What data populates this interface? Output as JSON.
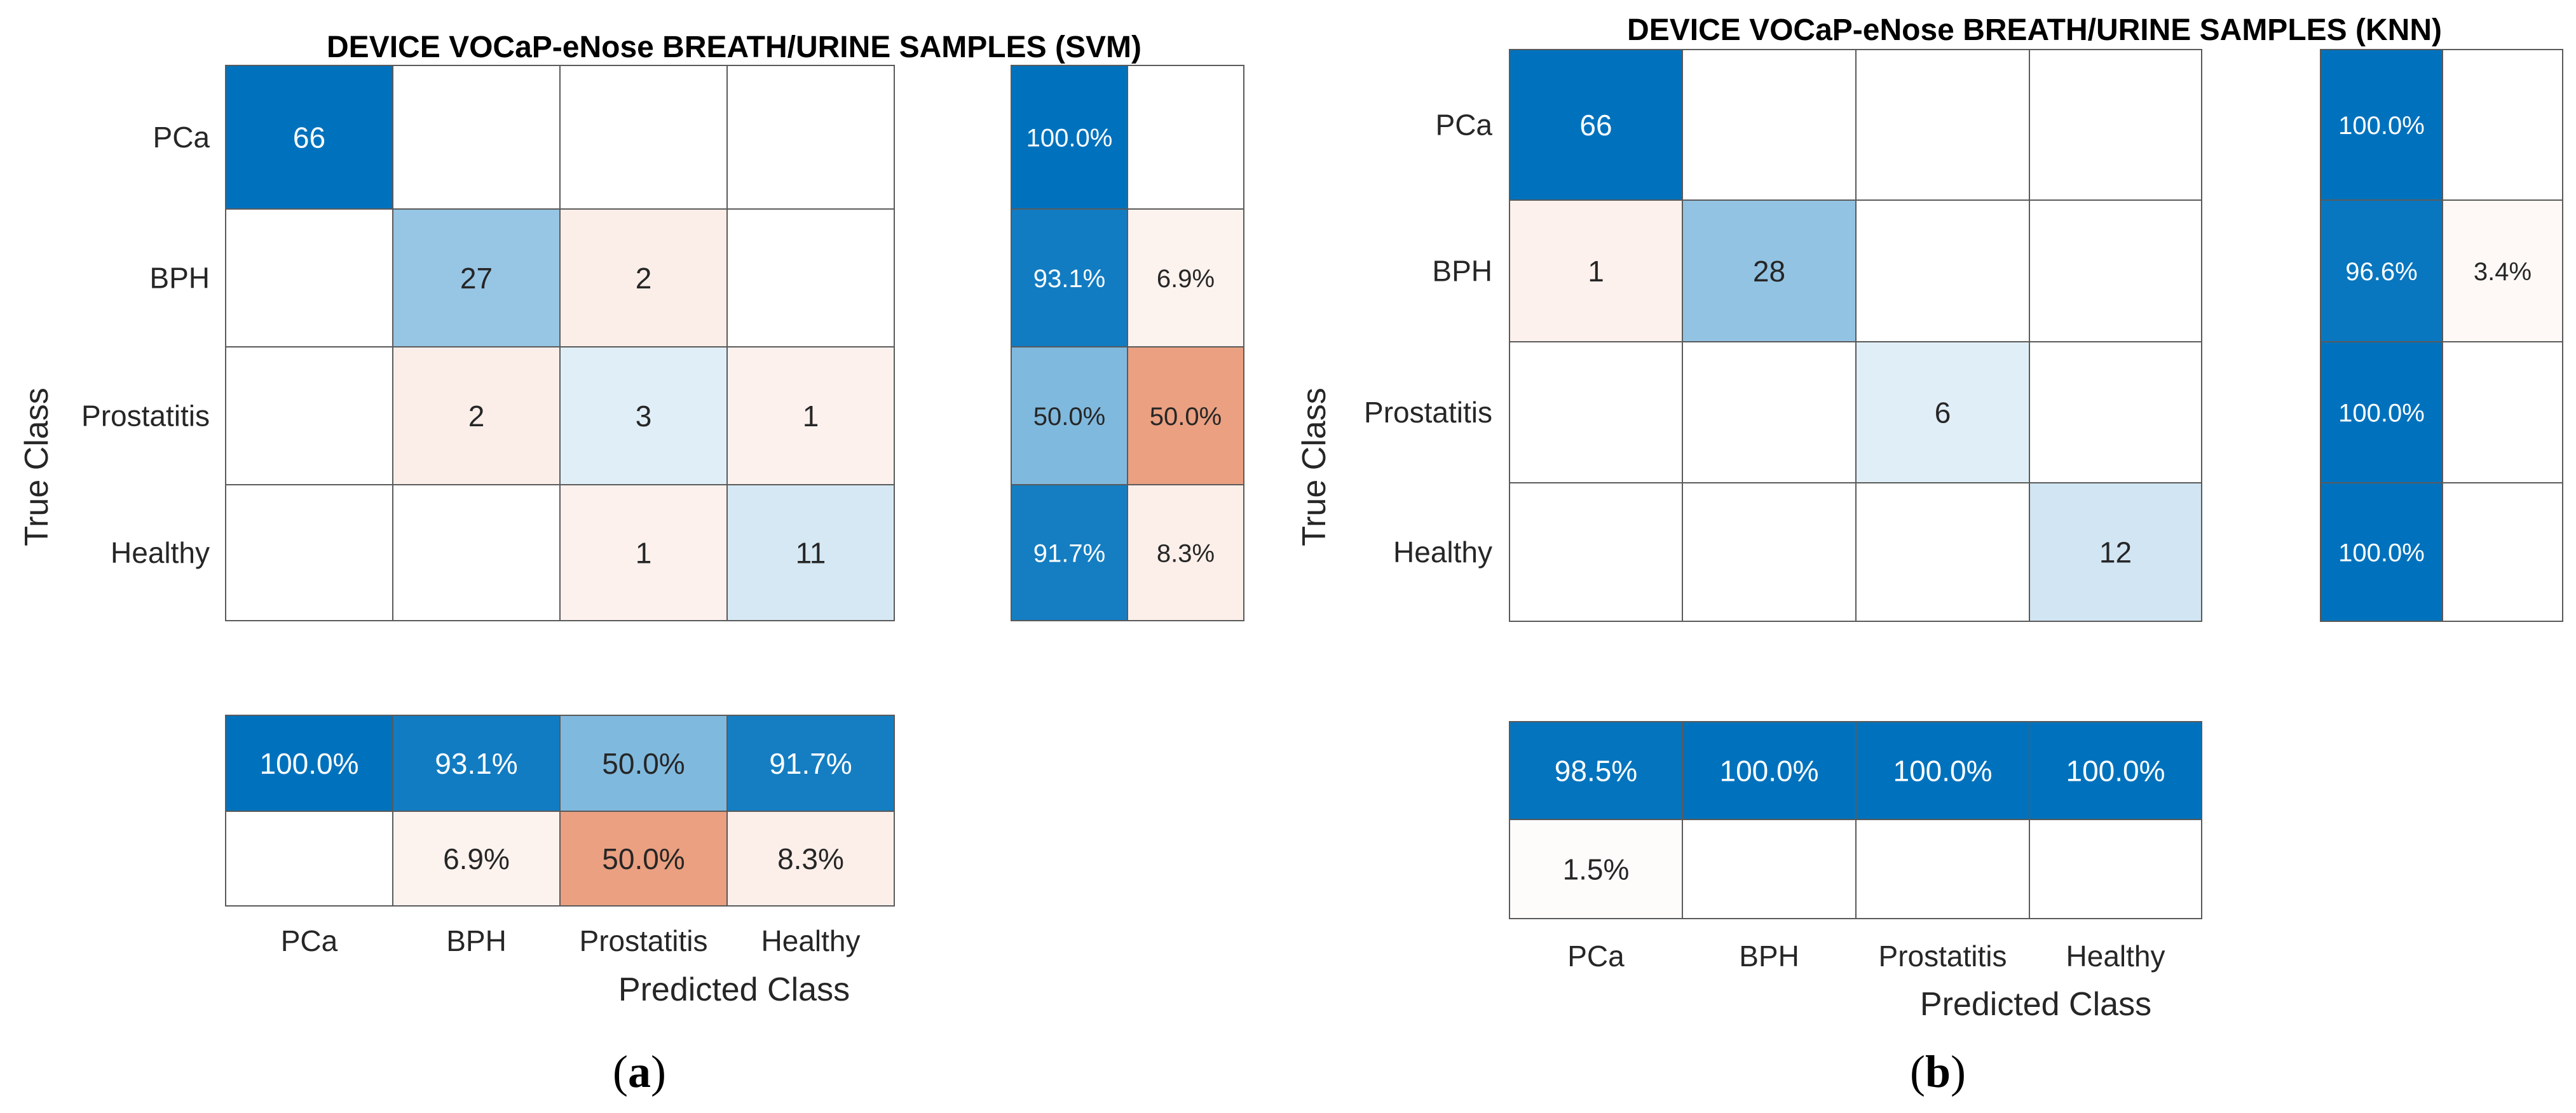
{
  "chart_data": [
    {
      "type": "heatmap",
      "subtype": "confusion-matrix",
      "title": "DEVICE VOCaP-eNose BREATH/URINE SAMPLES (SVM)",
      "caption_letter": "a",
      "classes": [
        "PCa",
        "BPH",
        "Prostatitis",
        "Healthy"
      ],
      "xlabel": "Predicted Class",
      "ylabel": "True Class",
      "matrix": [
        [
          66,
          0,
          0,
          0
        ],
        [
          0,
          27,
          2,
          0
        ],
        [
          0,
          2,
          3,
          1
        ],
        [
          0,
          0,
          1,
          11
        ]
      ],
      "row_summary": [
        [
          "100.0%",
          ""
        ],
        [
          "93.1%",
          "6.9%"
        ],
        [
          "50.0%",
          "50.0%"
        ],
        [
          "91.7%",
          "8.3%"
        ]
      ],
      "col_summary": [
        [
          "100.0%",
          "93.1%",
          "50.0%",
          "91.7%"
        ],
        [
          "",
          "6.9%",
          "50.0%",
          "8.3%"
        ]
      ]
    },
    {
      "type": "heatmap",
      "subtype": "confusion-matrix",
      "title": "DEVICE VOCaP-eNose BREATH/URINE SAMPLES (KNN)",
      "caption_letter": "b",
      "classes": [
        "PCa",
        "BPH",
        "Prostatitis",
        "Healthy"
      ],
      "xlabel": "Predicted Class",
      "ylabel": "True Class",
      "matrix": [
        [
          66,
          0,
          0,
          0
        ],
        [
          1,
          28,
          0,
          0
        ],
        [
          0,
          0,
          6,
          0
        ],
        [
          0,
          0,
          0,
          12
        ]
      ],
      "row_summary": [
        [
          "100.0%",
          ""
        ],
        [
          "96.6%",
          "3.4%"
        ],
        [
          "100.0%",
          ""
        ],
        [
          "100.0%",
          ""
        ]
      ],
      "col_summary": [
        [
          "98.5%",
          "100.0%",
          "100.0%",
          "100.0%"
        ],
        [
          "1.5%",
          "",
          "",
          ""
        ]
      ]
    }
  ],
  "colors": {
    "correct_max": "#0072bd",
    "incorrect_max": "#d95319",
    "grid_line": "#5a5a5a"
  }
}
